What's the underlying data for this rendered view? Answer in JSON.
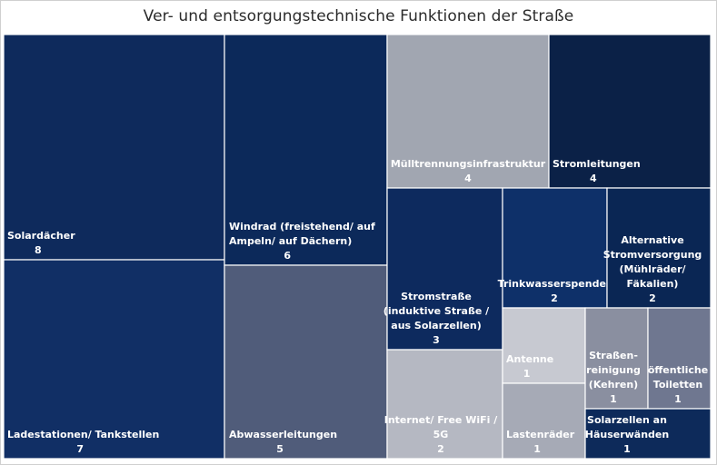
{
  "chart_data": {
    "type": "treemap",
    "title": "Ver- und entsorgungstechnische Funktionen der Straße",
    "items": [
      {
        "label": [
          "Solardächer"
        ],
        "value": 8,
        "color": "#0e2a5c"
      },
      {
        "label": [
          "Ladestationen/ Tankstellen"
        ],
        "value": 7,
        "color": "#112f65"
      },
      {
        "label": [
          "Windrad (freistehend/ auf",
          "Ampeln/ auf Dächern)"
        ],
        "value": 6,
        "color": "#0c295a"
      },
      {
        "label": [
          "Abwasserleitungen"
        ],
        "value": 5,
        "color": "#505c7a"
      },
      {
        "label": [
          "Mülltrennungsinfrastruktur"
        ],
        "value": 4,
        "color": "#a1a6b1"
      },
      {
        "label": [
          "Stromleitungen"
        ],
        "value": 4,
        "color": "#0b2147"
      },
      {
        "label": [
          "Stromstraße",
          "(induktive Straße /",
          "aus Solarzellen)"
        ],
        "value": 3,
        "color": "#0d2a5e"
      },
      {
        "label": [
          "Internet/ Free WiFi /",
          "5G"
        ],
        "value": 2,
        "color": "#b5b8c2"
      },
      {
        "label": [
          "Trinkwasserspender"
        ],
        "value": 2,
        "color": "#0e3069"
      },
      {
        "label": [
          "Alternative",
          "Stromversorgung",
          "(Mühlräder/",
          "Fäkalien)"
        ],
        "value": 2,
        "color": "#0a2654"
      },
      {
        "label": [
          "Antenne"
        ],
        "value": 1,
        "color": "#c7c9d1"
      },
      {
        "label": [
          "Lastenräder"
        ],
        "value": 1,
        "color": "#a6aab6"
      },
      {
        "label": [
          "Straßen-",
          "reinigung",
          "(Kehren)"
        ],
        "value": 1,
        "color": "#8a8fa0"
      },
      {
        "label": [
          "öffentliche",
          "Toiletten"
        ],
        "value": 1,
        "color": "#6f7790"
      },
      {
        "label": [
          "Solarzellen an",
          "Häuserwänden"
        ],
        "value": 1,
        "color": "#0d2a5a"
      }
    ]
  }
}
